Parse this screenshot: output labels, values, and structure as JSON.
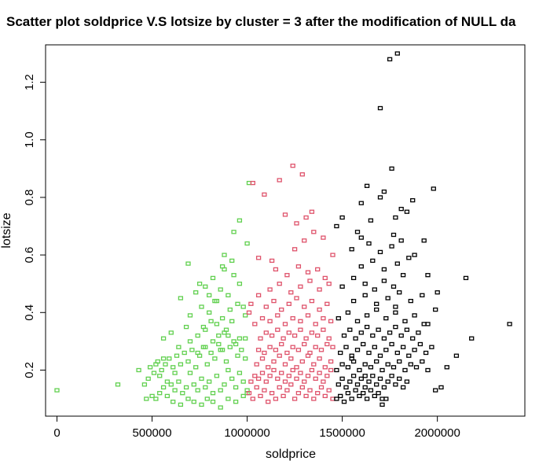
{
  "chart_data": {
    "type": "scatter",
    "title": "Scatter plot soldprice V.S lotsize by cluster = 3 after the modification of NULL da",
    "xlabel": "soldprice",
    "ylabel": "lotsize",
    "xlim": [
      -60000,
      2460000
    ],
    "ylim": [
      0.04,
      1.33
    ],
    "xticks": [
      0,
      500000,
      1000000,
      1500000,
      2000000
    ],
    "xtick_labels": [
      "0",
      "500000",
      "1000000",
      "1500000",
      "2000000"
    ],
    "yticks": [
      0.2,
      0.4,
      0.6,
      0.8,
      1.0,
      1.2
    ],
    "ytick_labels": [
      "0.2",
      "0.4",
      "0.6",
      "0.8",
      "1.0",
      "1.2"
    ],
    "grid": false,
    "legend": "none",
    "series": [
      {
        "color": "#61d04f",
        "x": [
          0,
          320000,
          430000,
          460000,
          480000,
          500000,
          520000,
          540000,
          560000,
          580000,
          600000,
          620000,
          640000,
          660000,
          680000,
          700000,
          720000,
          740000,
          760000,
          780000,
          800000,
          820000,
          840000,
          860000,
          880000,
          900000,
          920000,
          940000,
          960000,
          980000,
          1000000,
          490000,
          510000,
          530000,
          550000,
          570000,
          590000,
          610000,
          630000,
          650000,
          670000,
          690000,
          710000,
          730000,
          750000,
          770000,
          790000,
          810000,
          830000,
          850000,
          870000,
          890000,
          910000,
          930000,
          950000,
          970000,
          990000,
          470000,
          610000,
          650000,
          690000,
          720000,
          760000,
          790000,
          820000,
          860000,
          900000,
          940000,
          980000,
          1000000,
          560000,
          600000,
          680000,
          740000,
          780000,
          840000,
          880000,
          920000,
          960000,
          700000,
          760000,
          800000,
          830000,
          870000,
          910000,
          950000,
          990000,
          650000,
          730000,
          780000,
          860000,
          900000,
          960000,
          980000,
          880000,
          930000,
          960000,
          1010000,
          1000000,
          880000,
          920000,
          820000,
          870000,
          930000,
          690000,
          750000,
          800000,
          840000,
          770000,
          810000,
          850000,
          890000,
          540000,
          580000,
          620000,
          520000,
          560000,
          640000,
          700000,
          740000,
          780000,
          820000,
          860000,
          900000,
          940000,
          990000
        ],
        "y": [
          0.13,
          0.15,
          0.2,
          0.15,
          0.17,
          0.11,
          0.1,
          0.12,
          0.14,
          0.11,
          0.15,
          0.13,
          0.16,
          0.12,
          0.14,
          0.19,
          0.15,
          0.13,
          0.17,
          0.14,
          0.16,
          0.12,
          0.18,
          0.13,
          0.15,
          0.2,
          0.17,
          0.14,
          0.19,
          0.16,
          0.13,
          0.21,
          0.19,
          0.23,
          0.2,
          0.22,
          0.24,
          0.21,
          0.25,
          0.22,
          0.26,
          0.23,
          0.27,
          0.21,
          0.25,
          0.28,
          0.22,
          0.26,
          0.24,
          0.29,
          0.27,
          0.23,
          0.28,
          0.3,
          0.25,
          0.27,
          0.24,
          0.1,
          0.09,
          0.08,
          0.1,
          0.09,
          0.08,
          0.1,
          0.09,
          0.07,
          0.1,
          0.09,
          0.11,
          0.12,
          0.31,
          0.33,
          0.35,
          0.32,
          0.34,
          0.36,
          0.33,
          0.37,
          0.31,
          0.39,
          0.42,
          0.4,
          0.44,
          0.38,
          0.41,
          0.43,
          0.39,
          0.45,
          0.47,
          0.49,
          0.48,
          0.46,
          0.5,
          0.42,
          0.6,
          0.68,
          0.72,
          0.85,
          0.64,
          0.55,
          0.58,
          0.52,
          0.56,
          0.53,
          0.57,
          0.5,
          0.46,
          0.44,
          0.35,
          0.37,
          0.32,
          0.34,
          0.18,
          0.16,
          0.19,
          0.22,
          0.24,
          0.28,
          0.3,
          0.26,
          0.28,
          0.3,
          0.27,
          0.32,
          0.29,
          0.31
        ]
      },
      {
        "color": "#df536b",
        "x": [
          1010000,
          1030000,
          1050000,
          1070000,
          1090000,
          1110000,
          1130000,
          1150000,
          1170000,
          1190000,
          1210000,
          1230000,
          1250000,
          1270000,
          1290000,
          1310000,
          1330000,
          1350000,
          1370000,
          1390000,
          1410000,
          1430000,
          1450000,
          1020000,
          1040000,
          1060000,
          1080000,
          1100000,
          1120000,
          1140000,
          1160000,
          1180000,
          1200000,
          1220000,
          1240000,
          1260000,
          1280000,
          1300000,
          1320000,
          1340000,
          1360000,
          1380000,
          1400000,
          1420000,
          1440000,
          1050000,
          1080000,
          1110000,
          1140000,
          1170000,
          1200000,
          1230000,
          1260000,
          1290000,
          1320000,
          1350000,
          1380000,
          1410000,
          1440000,
          1060000,
          1090000,
          1120000,
          1150000,
          1180000,
          1210000,
          1240000,
          1270000,
          1300000,
          1330000,
          1360000,
          1390000,
          1420000,
          1450000,
          1070000,
          1100000,
          1130000,
          1160000,
          1190000,
          1220000,
          1250000,
          1280000,
          1310000,
          1340000,
          1370000,
          1400000,
          1430000,
          1040000,
          1080000,
          1120000,
          1160000,
          1200000,
          1240000,
          1280000,
          1320000,
          1360000,
          1400000,
          1440000,
          1100000,
          1140000,
          1180000,
          1220000,
          1260000,
          1300000,
          1340000,
          1380000,
          1420000,
          1120000,
          1170000,
          1230000,
          1280000,
          1330000,
          1380000,
          1430000,
          1150000,
          1210000,
          1270000,
          1320000,
          1370000,
          1410000,
          1250000,
          1300000,
          1350000,
          1060000,
          1200000,
          1260000,
          1310000,
          1400000,
          1030000,
          1090000,
          1170000,
          1240000,
          1290000,
          1340000,
          1450000,
          1020000,
          1130000,
          1060000,
          1010000
        ],
        "y": [
          0.12,
          0.1,
          0.14,
          0.11,
          0.13,
          0.09,
          0.12,
          0.1,
          0.14,
          0.11,
          0.13,
          0.15,
          0.1,
          0.12,
          0.14,
          0.11,
          0.13,
          0.1,
          0.12,
          0.14,
          0.11,
          0.13,
          0.1,
          0.16,
          0.18,
          0.17,
          0.19,
          0.16,
          0.18,
          0.2,
          0.17,
          0.19,
          0.16,
          0.18,
          0.2,
          0.17,
          0.19,
          0.16,
          0.18,
          0.2,
          0.17,
          0.19,
          0.16,
          0.18,
          0.2,
          0.22,
          0.24,
          0.21,
          0.23,
          0.25,
          0.22,
          0.24,
          0.21,
          0.23,
          0.25,
          0.22,
          0.24,
          0.21,
          0.23,
          0.27,
          0.26,
          0.28,
          0.27,
          0.29,
          0.26,
          0.28,
          0.27,
          0.29,
          0.26,
          0.28,
          0.27,
          0.29,
          0.28,
          0.31,
          0.33,
          0.32,
          0.34,
          0.31,
          0.33,
          0.32,
          0.34,
          0.31,
          0.33,
          0.32,
          0.34,
          0.31,
          0.36,
          0.38,
          0.37,
          0.39,
          0.36,
          0.38,
          0.37,
          0.39,
          0.36,
          0.38,
          0.37,
          0.42,
          0.44,
          0.41,
          0.43,
          0.45,
          0.42,
          0.44,
          0.41,
          0.43,
          0.48,
          0.5,
          0.47,
          0.49,
          0.51,
          0.48,
          0.5,
          0.55,
          0.53,
          0.56,
          0.54,
          0.55,
          0.52,
          0.62,
          0.65,
          0.68,
          0.59,
          0.74,
          0.71,
          0.73,
          0.66,
          0.85,
          0.81,
          0.86,
          0.91,
          0.88,
          0.75,
          0.6,
          0.43,
          0.58,
          0.46,
          0.4
        ]
      },
      {
        "color": "#000000",
        "x": [
          1470000,
          1490000,
          1510000,
          1530000,
          1550000,
          1570000,
          1590000,
          1610000,
          1630000,
          1650000,
          1670000,
          1690000,
          1710000,
          1730000,
          1480000,
          1500000,
          1520000,
          1540000,
          1560000,
          1580000,
          1600000,
          1620000,
          1640000,
          1660000,
          1680000,
          1700000,
          1720000,
          1740000,
          1760000,
          1780000,
          1800000,
          1820000,
          1840000,
          1470000,
          1500000,
          1530000,
          1560000,
          1590000,
          1620000,
          1650000,
          1680000,
          1710000,
          1740000,
          1770000,
          1800000,
          1830000,
          1860000,
          1890000,
          1920000,
          1950000,
          1490000,
          1520000,
          1550000,
          1580000,
          1610000,
          1640000,
          1670000,
          1700000,
          1730000,
          1760000,
          1790000,
          1820000,
          1850000,
          1880000,
          1910000,
          1940000,
          1970000,
          1510000,
          1540000,
          1570000,
          1600000,
          1630000,
          1660000,
          1690000,
          1720000,
          1750000,
          1780000,
          1810000,
          1840000,
          1870000,
          1900000,
          1480000,
          1530000,
          1580000,
          1630000,
          1680000,
          1730000,
          1780000,
          1830000,
          1880000,
          1930000,
          1990000,
          1560000,
          1620000,
          1680000,
          1740000,
          1800000,
          1860000,
          1920000,
          1500000,
          1560000,
          1620000,
          1670000,
          1720000,
          1770000,
          1820000,
          1600000,
          1660000,
          1720000,
          1790000,
          1850000,
          1550000,
          1640000,
          1700000,
          1760000,
          1810000,
          1470000,
          1580000,
          1650000,
          1770000,
          1840000,
          1600000,
          1700000,
          1780000,
          1870000,
          1630000,
          1720000,
          1810000,
          1760000,
          1980000,
          2150000,
          2380000,
          2180000,
          2050000,
          2020000,
          1990000,
          1950000,
          1930000,
          2000000,
          2100000,
          1790000,
          1750000,
          1700000,
          1710000,
          1600000,
          1880000,
          1950000,
          1550000,
          1620000,
          1500000,
          1780000
        ],
        "y": [
          0.1,
          0.11,
          0.09,
          0.12,
          0.1,
          0.13,
          0.11,
          0.12,
          0.1,
          0.13,
          0.11,
          0.12,
          0.08,
          0.1,
          0.15,
          0.17,
          0.14,
          0.16,
          0.18,
          0.15,
          0.17,
          0.14,
          0.16,
          0.18,
          0.15,
          0.17,
          0.14,
          0.16,
          0.18,
          0.15,
          0.17,
          0.14,
          0.16,
          0.2,
          0.22,
          0.21,
          0.23,
          0.2,
          0.22,
          0.21,
          0.23,
          0.2,
          0.22,
          0.21,
          0.23,
          0.2,
          0.22,
          0.21,
          0.23,
          0.2,
          0.26,
          0.28,
          0.25,
          0.27,
          0.29,
          0.26,
          0.28,
          0.25,
          0.27,
          0.29,
          0.26,
          0.28,
          0.25,
          0.27,
          0.29,
          0.26,
          0.28,
          0.32,
          0.34,
          0.31,
          0.33,
          0.35,
          0.32,
          0.34,
          0.31,
          0.33,
          0.35,
          0.32,
          0.34,
          0.31,
          0.33,
          0.38,
          0.4,
          0.37,
          0.39,
          0.41,
          0.38,
          0.4,
          0.37,
          0.39,
          0.36,
          0.41,
          0.44,
          0.46,
          0.43,
          0.45,
          0.47,
          0.44,
          0.46,
          0.49,
          0.52,
          0.5,
          0.48,
          0.51,
          0.49,
          0.53,
          0.56,
          0.58,
          0.55,
          0.57,
          0.59,
          0.62,
          0.64,
          0.61,
          0.63,
          0.65,
          0.7,
          0.68,
          0.72,
          0.67,
          0.75,
          0.78,
          0.8,
          0.73,
          0.79,
          0.84,
          0.82,
          0.76,
          0.9,
          0.83,
          0.52,
          0.36,
          0.31,
          0.21,
          0.14,
          0.13,
          0.53,
          0.65,
          0.47,
          0.25,
          1.3,
          1.28,
          1.11,
          0.1,
          0.66,
          0.6,
          0.36,
          0.24,
          0.18,
          0.73,
          0.42
        ]
      }
    ]
  }
}
